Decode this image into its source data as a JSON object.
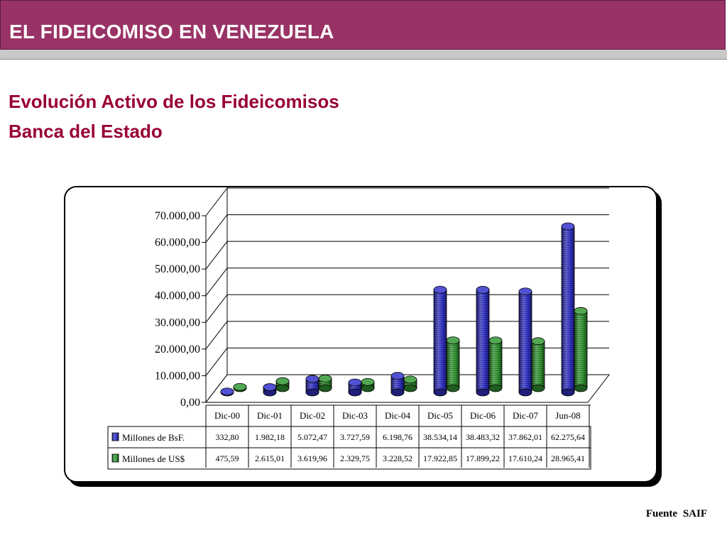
{
  "header": {
    "title": "EL FIDEICOMISO EN VENEZUELA"
  },
  "subtitle": {
    "line1": "Evolución Activo de los Fideicomisos",
    "line2": "Banca del Estado"
  },
  "source": {
    "label": "Fuente",
    "value": "SAIF"
  },
  "colors": {
    "title_bar": "#993366",
    "subtitle": "#990033",
    "series_bse": "#3333cc",
    "series_usd": "#339933"
  },
  "chart_data": {
    "type": "bar",
    "categories": [
      "Dic-00",
      "Dic-01",
      "Dic-02",
      "Dic-03",
      "Dic-04",
      "Dic-05",
      "Dic-06",
      "Dic-07",
      "Jun-08"
    ],
    "y_ticks": [
      "0,00",
      "10.000,00",
      "20.000,00",
      "30.000,00",
      "40.000,00",
      "50.000,00",
      "60.000,00",
      "70.000,00"
    ],
    "ylim": [
      0,
      70000
    ],
    "grid": true,
    "legend": "data-table",
    "series": [
      {
        "name": "Millones de BsF.",
        "color": "#3333cc",
        "values": [
          332.8,
          1982.18,
          5072.47,
          3727.59,
          6198.76,
          38534.14,
          38483.32,
          37862.01,
          62275.64
        ],
        "labels": [
          "332,80",
          "1.982,18",
          "5.072,47",
          "3.727,59",
          "6.198,76",
          "38.534,14",
          "38.483,32",
          "37.862,01",
          "62.275,64"
        ]
      },
      {
        "name": "Millones de US$",
        "color": "#339933",
        "values": [
          475.59,
          2615.01,
          3619.96,
          2329.75,
          3228.52,
          17922.85,
          17899.22,
          17610.24,
          28965.41
        ],
        "labels": [
          "475,59",
          "2.615,01",
          "3.619,96",
          "2.329,75",
          "3.228,52",
          "17.922,85",
          "17.899,22",
          "17.610,24",
          "28.965,41"
        ]
      }
    ]
  }
}
